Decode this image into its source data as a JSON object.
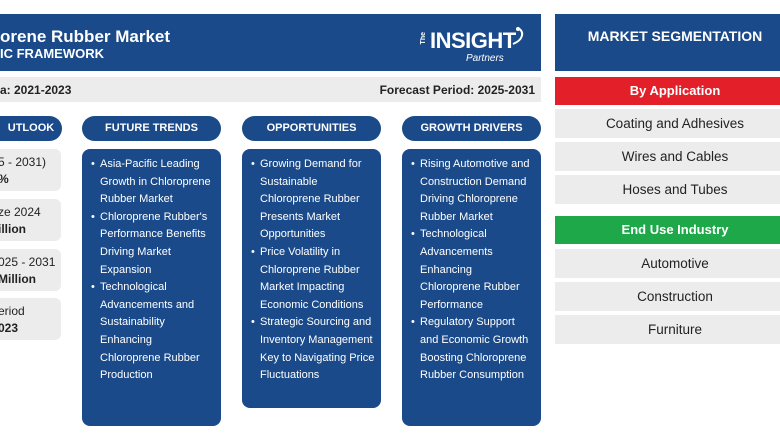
{
  "header": {
    "title": "orene Rubber Market",
    "subtitle": "IC FRAMEWORK",
    "logo": {
      "the": "The",
      "brand": "INSIGHT",
      "sub": "Partners"
    }
  },
  "periods": {
    "historical": "a: 2021-2023",
    "forecast": "Forecast Period: 2025-2031"
  },
  "outlook": {
    "label": "UTLOOK",
    "stats": [
      {
        "label": "5 - 2031)",
        "value": "%"
      },
      {
        "label": "ze 2024",
        "value": "illion"
      },
      {
        "label": "025 - 2031",
        "value": "Million"
      },
      {
        "label": "eriod",
        "value": "023"
      }
    ]
  },
  "columns": {
    "future_trends": {
      "label": "FUTURE TRENDS",
      "items": [
        "Asia-Pacific Leading Growth in Chloroprene Rubber Market",
        "Chloroprene Rubber's Performance Benefits Driving Market Expansion",
        "Technological Advancements and Sustainability Enhancing Chloroprene Rubber Production"
      ]
    },
    "opportunities": {
      "label": "OPPORTUNITIES",
      "items": [
        "Growing Demand for Sustainable Chloroprene Rubber Presents Market Opportunities",
        "Price Volatility in Chloroprene Rubber Market Impacting Economic Conditions",
        "Strategic Sourcing and Inventory Management Key to Navigating Price Fluctuations"
      ]
    },
    "growth_drivers": {
      "label": "GROWTH DRIVERS",
      "items": [
        "Rising Automotive and Construction Demand Driving Chloroprene Rubber Market",
        "Technological Advancements Enhancing Chloroprene Rubber Performance",
        "Regulatory Support and Economic Growth Boosting Chloroprene Rubber Consumption"
      ]
    }
  },
  "segmentation": {
    "title": "MARKET SEGMENTATION",
    "by_application": {
      "label": "By Application",
      "items": [
        "Coating and Adhesives",
        "Wires and Cables",
        "Hoses and Tubes"
      ]
    },
    "end_use": {
      "label": "End Use Industry",
      "items": [
        "Automotive",
        "Construction",
        "Furniture"
      ]
    }
  },
  "colors": {
    "navy": "#1a4a8a",
    "red": "#e3202a",
    "green": "#1ea84a",
    "light_gray": "#ececec"
  }
}
